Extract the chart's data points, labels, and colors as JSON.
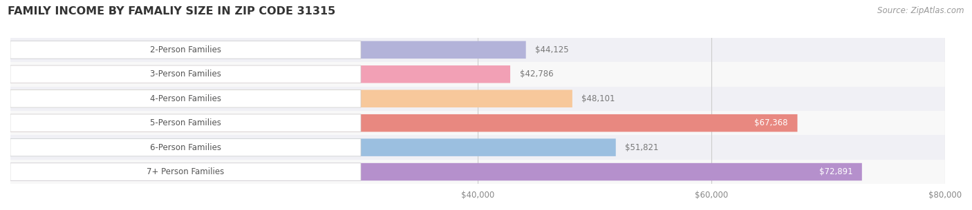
{
  "title": "FAMILY INCOME BY FAMALIY SIZE IN ZIP CODE 31315",
  "source": "Source: ZipAtlas.com",
  "categories": [
    "2-Person Families",
    "3-Person Families",
    "4-Person Families",
    "5-Person Families",
    "6-Person Families",
    "7+ Person Families"
  ],
  "values": [
    44125,
    42786,
    48101,
    67368,
    51821,
    72891
  ],
  "bar_colors": [
    "#b3b3d9",
    "#f2a0b5",
    "#f7c89b",
    "#e88880",
    "#9bbfe0",
    "#b590cc"
  ],
  "row_colors": [
    "#f0f0f5",
    "#f8f8f8"
  ],
  "xlim_min": 0,
  "xlim_max": 80000,
  "view_min": 30000,
  "xticks": [
    40000,
    60000,
    80000
  ],
  "xtick_labels": [
    "$40,000",
    "$60,000",
    "$80,000"
  ],
  "bar_height": 0.72,
  "background_color": "#ffffff",
  "title_fontsize": 11.5,
  "source_fontsize": 8.5,
  "label_fontsize": 8.5,
  "value_fontsize": 8.5,
  "tick_fontsize": 8.5,
  "label_color": "#555555",
  "value_outside_color": "#777777",
  "value_inside_color": "#ffffff"
}
